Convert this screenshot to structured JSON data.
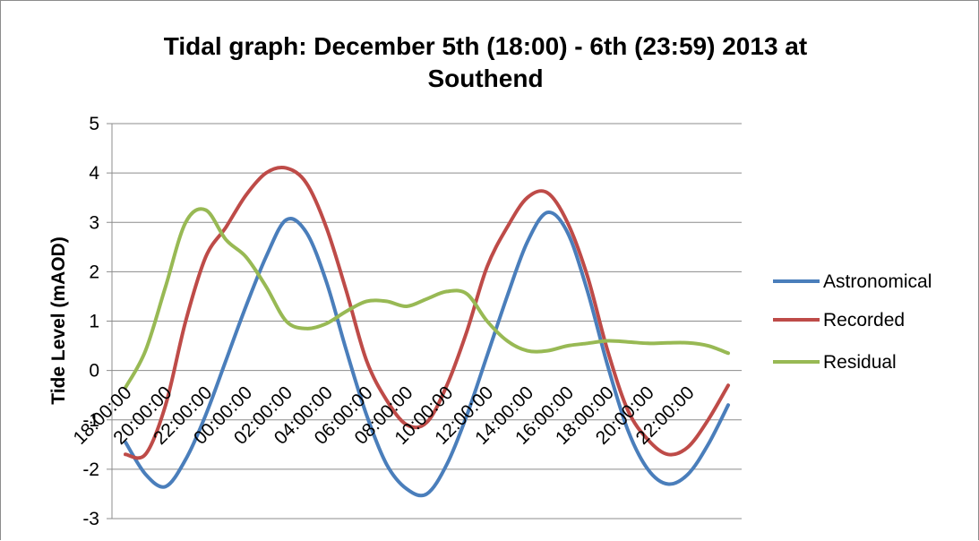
{
  "chart_data": {
    "type": "line",
    "title_lines": [
      "Tidal graph:  December 5th (18:00) - 6th (23:59)  2013 at",
      "Southend"
    ],
    "ylabel": "Tide Level (mAOD)",
    "xlabel": "",
    "ylim": [
      -3,
      5
    ],
    "yticks": [
      "5",
      "4",
      "3",
      "2",
      "1",
      "0",
      "-1",
      "-2",
      "-3"
    ],
    "x_tick_labels": [
      "18:00:00",
      "20:00:00",
      "22:00:00",
      "00:00:00",
      "02:00:00",
      "04:00:00",
      "06:00:00",
      "08:00:00",
      "10:00:00",
      "12:00:00",
      "14:00:00",
      "16:00:00",
      "18:00:00",
      "20:00:00",
      "22:00:00"
    ],
    "x_hours": [
      0,
      1,
      2,
      3,
      4,
      5,
      6,
      7,
      8,
      9,
      10,
      11,
      12,
      13,
      14,
      15,
      16,
      17,
      18,
      19,
      20,
      21,
      22,
      23,
      24,
      25,
      26,
      27,
      28,
      29,
      30
    ],
    "grid": true,
    "legend_position": "right",
    "series": [
      {
        "name": "Astronomical",
        "color": "#4a7ebb",
        "values": [
          -1.45,
          -2.1,
          -2.35,
          -1.8,
          -0.9,
          0.2,
          1.3,
          2.3,
          3.05,
          2.8,
          1.8,
          0.4,
          -0.9,
          -1.9,
          -2.4,
          -2.5,
          -1.9,
          -0.9,
          0.3,
          1.5,
          2.6,
          3.2,
          2.8,
          1.6,
          0.1,
          -1.2,
          -2.0,
          -2.3,
          -2.1,
          -1.5,
          -0.7
        ]
      },
      {
        "name": "Recorded",
        "color": "#be4b48",
        "values": [
          -1.7,
          -1.7,
          -0.7,
          1.0,
          2.3,
          2.9,
          3.55,
          4.0,
          4.1,
          3.8,
          2.9,
          1.6,
          0.2,
          -0.6,
          -1.1,
          -1.05,
          -0.3,
          0.8,
          2.1,
          2.9,
          3.5,
          3.6,
          3.0,
          1.9,
          0.4,
          -0.8,
          -1.4,
          -1.7,
          -1.55,
          -1.0,
          -0.3
        ]
      },
      {
        "name": "Residual",
        "color": "#98b954",
        "values": [
          -0.35,
          0.4,
          1.7,
          3.0,
          3.25,
          2.65,
          2.3,
          1.7,
          1.0,
          0.85,
          0.95,
          1.2,
          1.4,
          1.4,
          1.3,
          1.45,
          1.6,
          1.55,
          1.0,
          0.6,
          0.4,
          0.4,
          0.5,
          0.55,
          0.6,
          0.58,
          0.55,
          0.56,
          0.56,
          0.5,
          0.35
        ]
      }
    ]
  }
}
